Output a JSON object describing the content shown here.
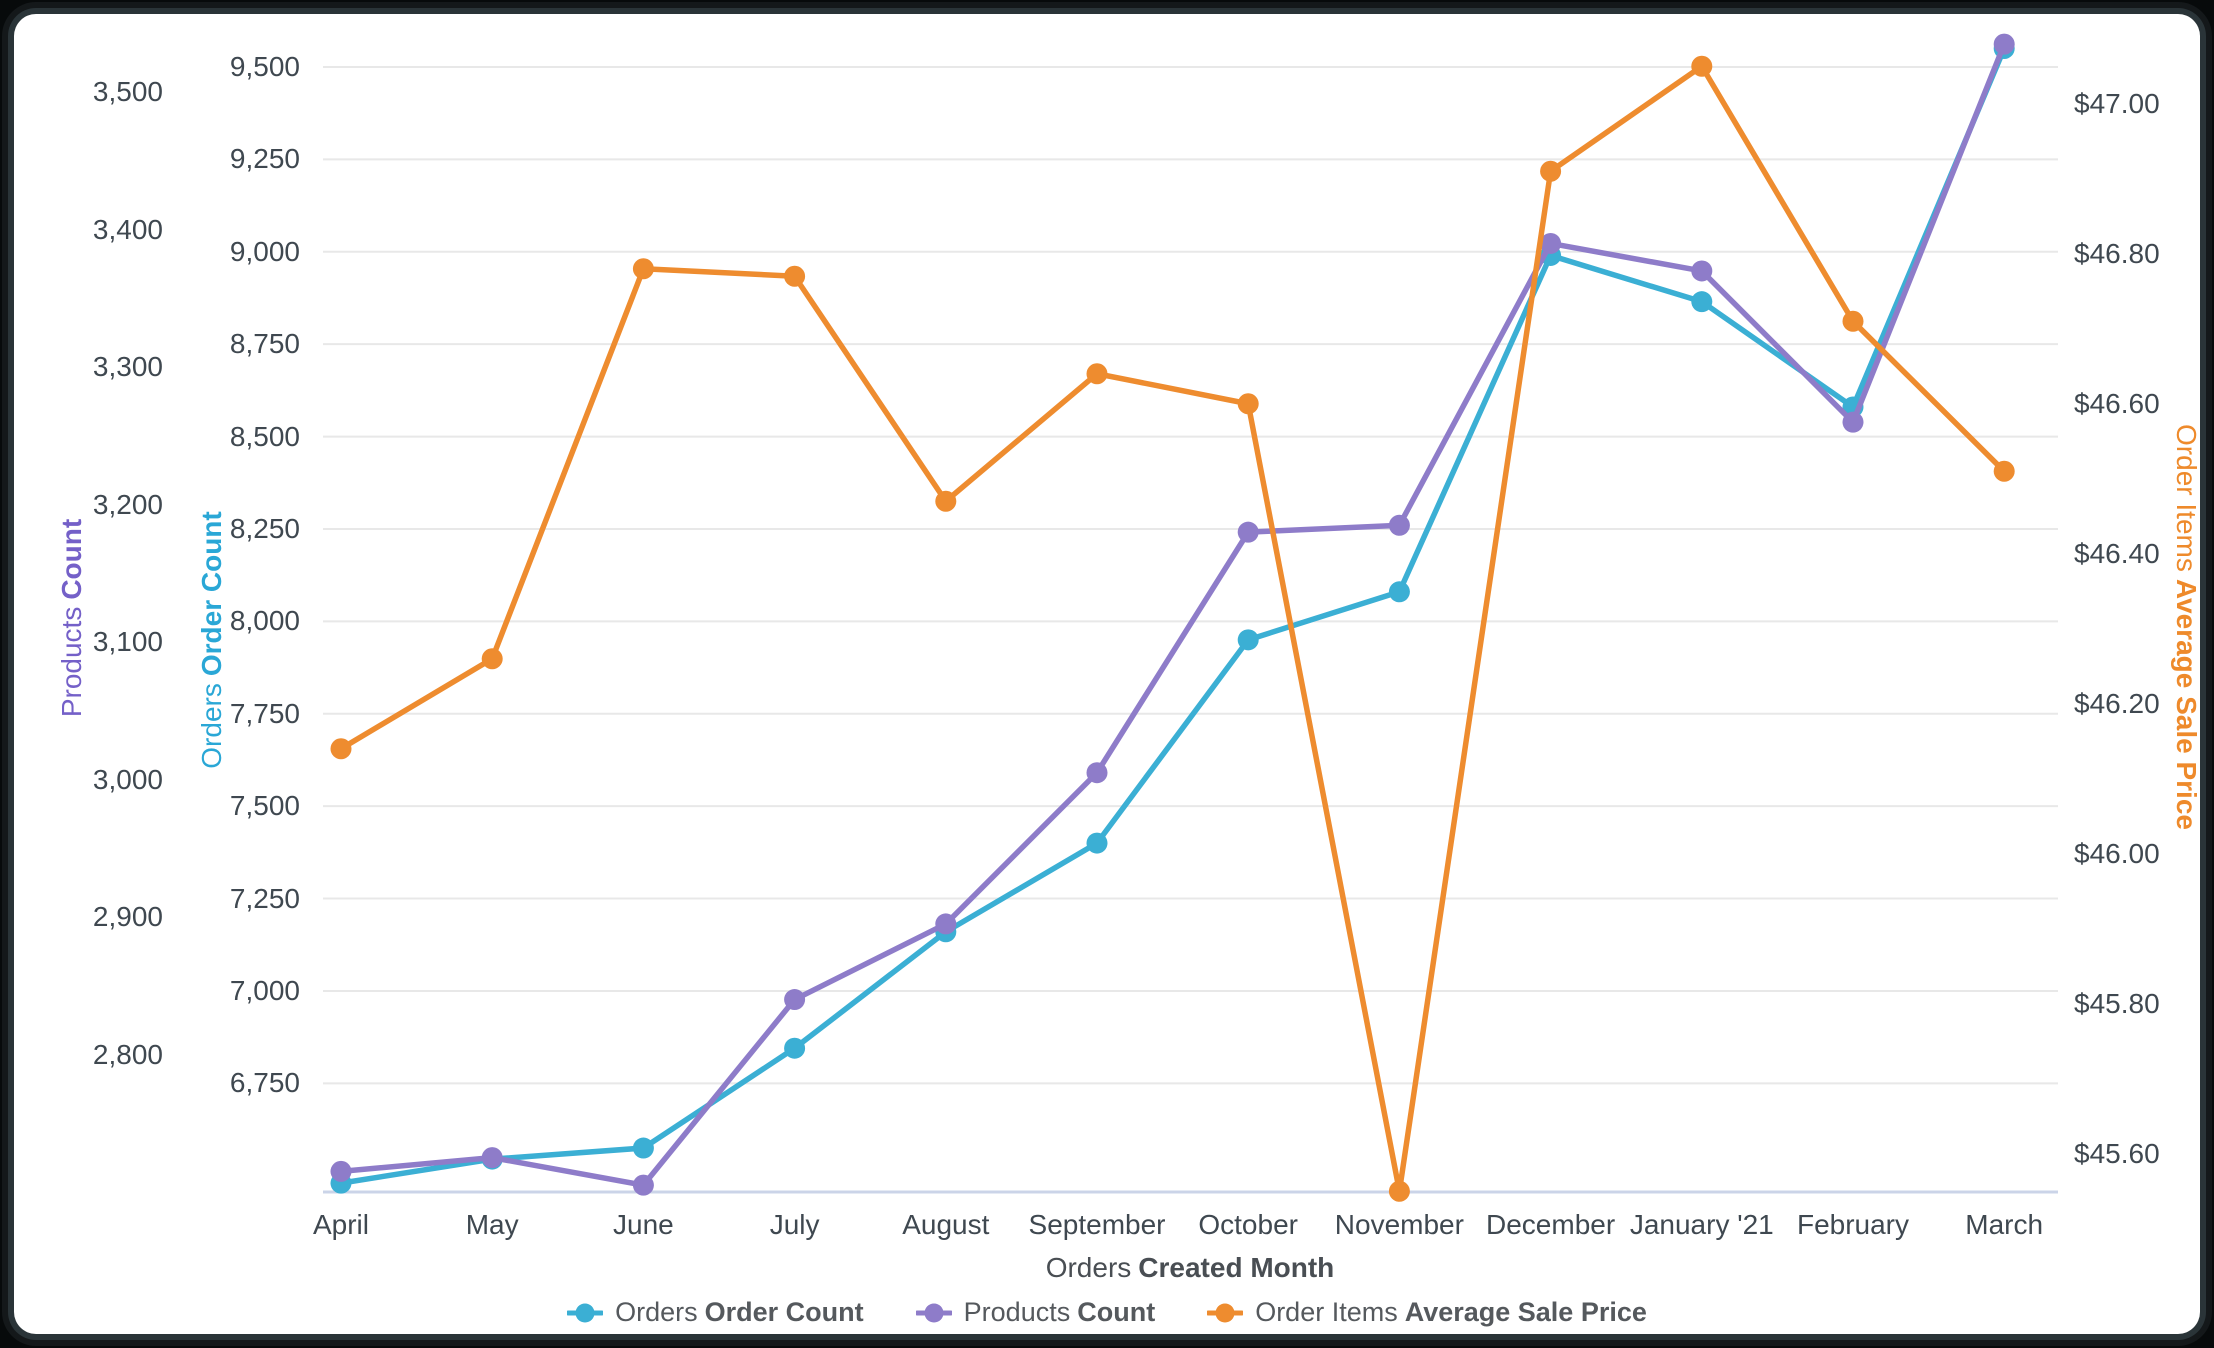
{
  "chart_data": {
    "type": "line",
    "x_axis": {
      "title_regular": "Orders",
      "title_bold": "Created Month",
      "categories": [
        "April",
        "May",
        "June",
        "July",
        "August",
        "September",
        "October",
        "November",
        "December",
        "January '21",
        "February",
        "March"
      ]
    },
    "y_axes": [
      {
        "id": "orders",
        "side": "left",
        "title_regular": "Orders",
        "title_bold": "Order Count",
        "title_color": "#2aa7d6",
        "tick_labels": [
          "9,500",
          "9,250",
          "9,000",
          "8,750",
          "8,500",
          "8,250",
          "8,000",
          "7,750",
          "7,500",
          "7,250",
          "7,000",
          "6,750"
        ],
        "tick_values": [
          9500,
          9250,
          9000,
          8750,
          8500,
          8250,
          8000,
          7750,
          7500,
          7250,
          7000,
          6750
        ],
        "min": 6456,
        "max": 9573,
        "gridlines": true
      },
      {
        "id": "products",
        "side": "left",
        "title_regular": "Products",
        "title_bold": "Count",
        "title_color": "#7460c8",
        "tick_labels": [
          "3,500",
          "3,400",
          "3,300",
          "3,200",
          "3,100",
          "3,000",
          "2,900",
          "2,800"
        ],
        "tick_values": [
          3500,
          3400,
          3300,
          3200,
          3100,
          3000,
          2900,
          2800
        ],
        "min": 2700,
        "max": 3538,
        "gridlines": false
      },
      {
        "id": "price",
        "side": "right",
        "title_regular": "Order Items",
        "title_bold": "Average Sale Price",
        "title_color": "#ee8a2b",
        "tick_labels": [
          "$47.00",
          "$46.80",
          "$46.60",
          "$46.40",
          "$46.20",
          "$46.00",
          "$45.80",
          "$45.60"
        ],
        "tick_values": [
          47.0,
          46.8,
          46.6,
          46.4,
          46.2,
          46.0,
          45.8,
          45.6
        ],
        "min": 45.549,
        "max": 47.085,
        "gridlines": false
      }
    ],
    "series": [
      {
        "name_regular": "Orders",
        "name_bold": "Order Count",
        "axis": "orders",
        "color": "#3bafd4",
        "values": [
          6480,
          6545,
          6575,
          6845,
          7160,
          7400,
          7950,
          8080,
          8990,
          8865,
          8580,
          9550
        ]
      },
      {
        "name_regular": "Products",
        "name_bold": "Count",
        "axis": "products",
        "color": "#8e7cc9",
        "values": [
          2715,
          2725,
          2705,
          2840,
          2895,
          3005,
          3180,
          3185,
          3390,
          3370,
          3260,
          3535
        ]
      },
      {
        "name_regular": "Order Items",
        "name_bold": "Average Sale Price",
        "axis": "price",
        "color": "#ee8c2f",
        "values": [
          46.14,
          46.26,
          46.78,
          46.77,
          46.47,
          46.64,
          46.6,
          45.55,
          46.91,
          47.05,
          46.71,
          46.51
        ]
      }
    ],
    "legend_position": "bottom",
    "grid_on": true
  },
  "theme": {
    "grid_color": "#e8e8e8",
    "baseline_color": "#cbd4e8",
    "tick_color": "#3f4850",
    "card_background": "#ffffff",
    "frame_color": "#2a3438",
    "page_background": "#070a0b"
  }
}
